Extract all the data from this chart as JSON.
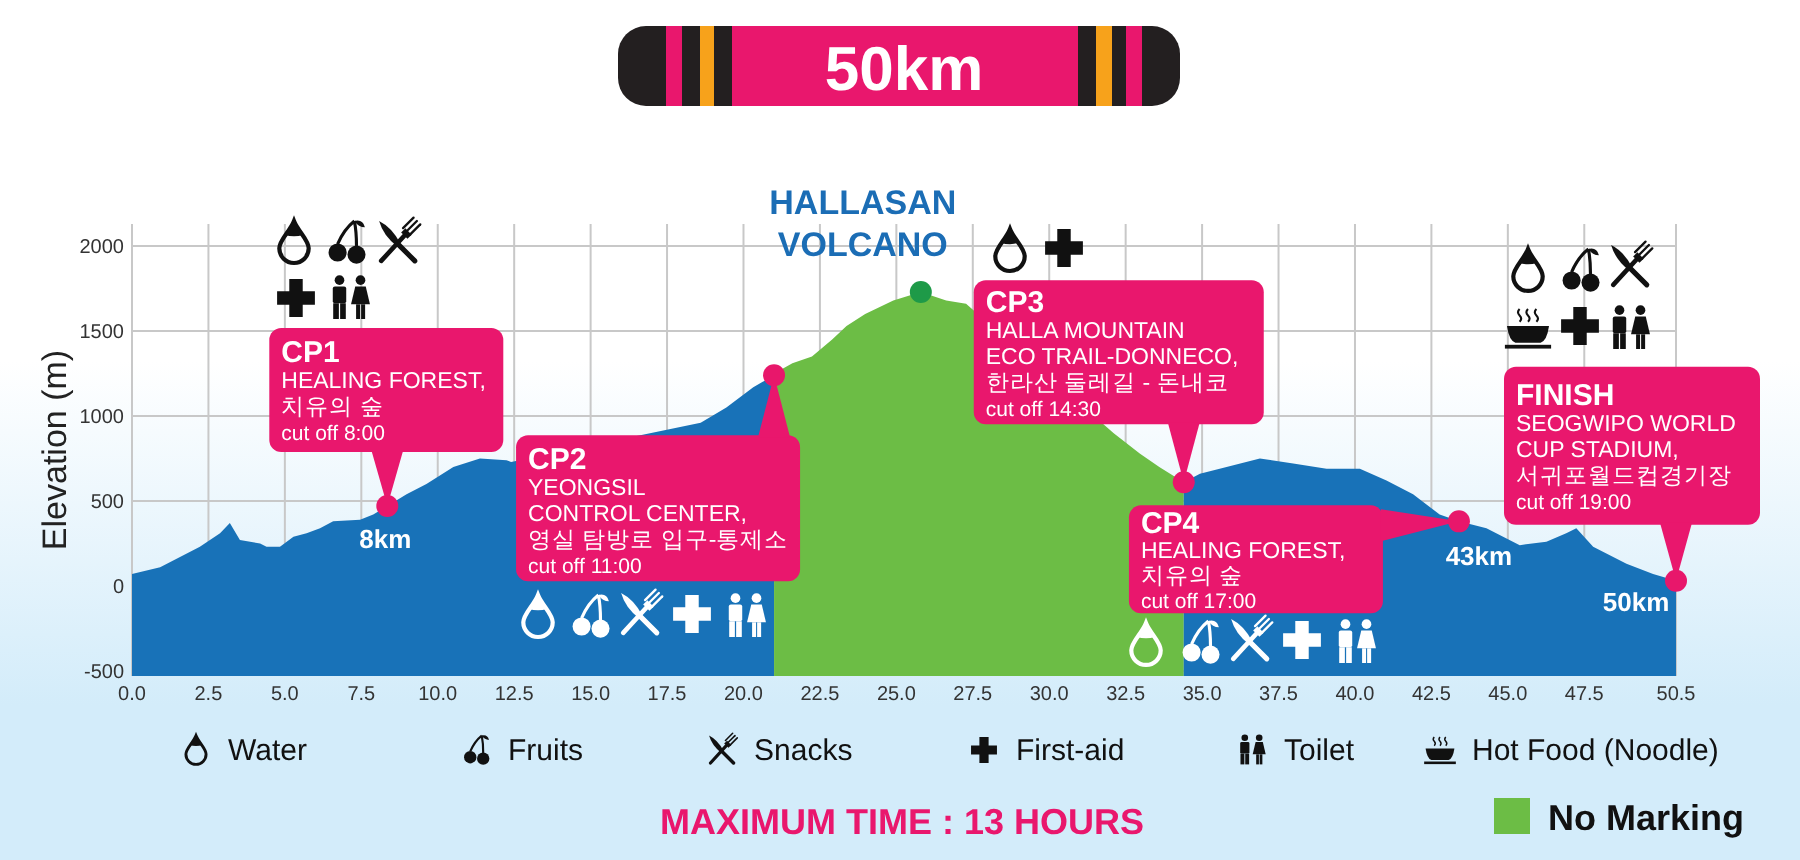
{
  "chart_data": {
    "type": "area",
    "title": "50km",
    "ylabel": "Elevation (m)",
    "xlim": [
      0,
      50.5
    ],
    "xticks": [
      {
        "value": 0,
        "label": "0.0"
      },
      2.5,
      {
        "value": 5,
        "label": "5.0"
      },
      7.5,
      {
        "value": 10,
        "label": "10.0"
      },
      12.5,
      {
        "value": 15,
        "label": "15.0"
      },
      17.5,
      {
        "value": 20,
        "label": "20.0"
      },
      22.5,
      {
        "value": 25,
        "label": "25.0"
      },
      27.5,
      {
        "value": 30,
        "label": "30.0"
      },
      32.5,
      {
        "value": 35,
        "label": "35.0"
      },
      37.5,
      {
        "value": 40,
        "label": "40.0"
      },
      42.5,
      {
        "value": 45,
        "label": "45.0"
      },
      47.5,
      50.5
    ],
    "ylim": [
      -530,
      2130
    ],
    "yticks": [
      -500,
      0,
      500,
      1000,
      1500,
      2000
    ],
    "grid": true,
    "legend": "bottom right",
    "series": [
      {
        "color": "#1872b8",
        "x": [
          0,
          0.92,
          1.57,
          2.22,
          2.88,
          3.2,
          3.53,
          4.19,
          4.4,
          4.84,
          5.28,
          5.71,
          6.15,
          6.58,
          7.46,
          7.89,
          8.35,
          8.98,
          9.63,
          10.51,
          11.38,
          12.25,
          12.4,
          18.6,
          19.44,
          20.32,
          21.0
        ],
        "values": [
          70,
          110,
          170,
          230,
          310,
          370,
          270,
          250,
          230,
          230,
          290,
          310,
          340,
          380,
          390,
          420,
          470,
          540,
          600,
          700,
          750,
          740,
          730,
          960,
          1050,
          1170,
          1240
        ]
      },
      {
        "name": "No Marking",
        "color": "#6cbd45",
        "x": [
          21.0,
          21.6,
          22.24,
          22.9,
          23.37,
          23.98,
          24.9,
          25.8,
          26.63,
          27.28,
          32.1,
          32.96,
          33.6,
          34.4
        ],
        "values": [
          1250,
          1310,
          1350,
          1450,
          1530,
          1600,
          1680,
          1730,
          1680,
          1660,
          900,
          780,
          700,
          610
        ]
      },
      {
        "color": "#1872b8",
        "x": [
          34.4,
          34.93,
          35.8,
          36.89,
          37.98,
          39.07,
          40.16,
          41.03,
          41.9,
          42.77,
          43.4,
          44.3,
          45.39,
          46.26,
          46.91,
          47.24,
          47.79,
          48.88,
          49.75,
          50.5
        ],
        "values": [
          610,
          660,
          700,
          750,
          720,
          690,
          690,
          620,
          540,
          420,
          380,
          340,
          240,
          260,
          310,
          340,
          230,
          130,
          70,
          30
        ]
      },
      {
        "type": "scatter",
        "marker": "circle",
        "color": "#e8176b",
        "x": [
          8.35,
          21.0,
          34.4,
          43.4,
          50.5
        ],
        "values": [
          470,
          1240,
          610,
          380,
          30
        ]
      },
      {
        "type": "scatter",
        "marker": "circle",
        "color": "#1e9a48",
        "x": [
          25.8
        ],
        "values": [
          1730
        ]
      }
    ],
    "annotations": [
      {
        "text": "HALLASAN\nVOLCANO",
        "x": 25.8,
        "y": 1730
      },
      {
        "text": "CP1\nHEALING FOREST,\n치유의 숲\ncut off 8:00",
        "x": 8.35,
        "y": 470
      },
      "8km",
      {
        "text": "CP2\nYEONGSIL\nCONTROL CENTER,\n영실 탐방로 입구-통제소\ncut off 11:00",
        "x": 21.0,
        "y": 1240
      },
      {
        "text": "CP3\nHALLA MOUNTAIN\nECO TRAIL-DONNECO,\n한라산 둘레길 - 돈내코\ncut off 14:30",
        "x": 34.4,
        "y": 610
      },
      {
        "text": "CP4\nHEALING FOREST,\n치유의 숲\ncut off 17:00",
        "x": 43.4,
        "y": 380
      },
      "43km",
      {
        "text": "FINISH\nSEOGWIPO WORLD\nCUP STADIUM,\n서귀포월드컵경기장\ncut off 19:00",
        "x": 50.5,
        "y": 30
      },
      "50km",
      "Water",
      "Fruits",
      "Snacks",
      "First-aid",
      "Toilet",
      "Hot Food (Noodle)",
      "MAXIMUM TIME : 13 HOURS"
    ]
  }
}
